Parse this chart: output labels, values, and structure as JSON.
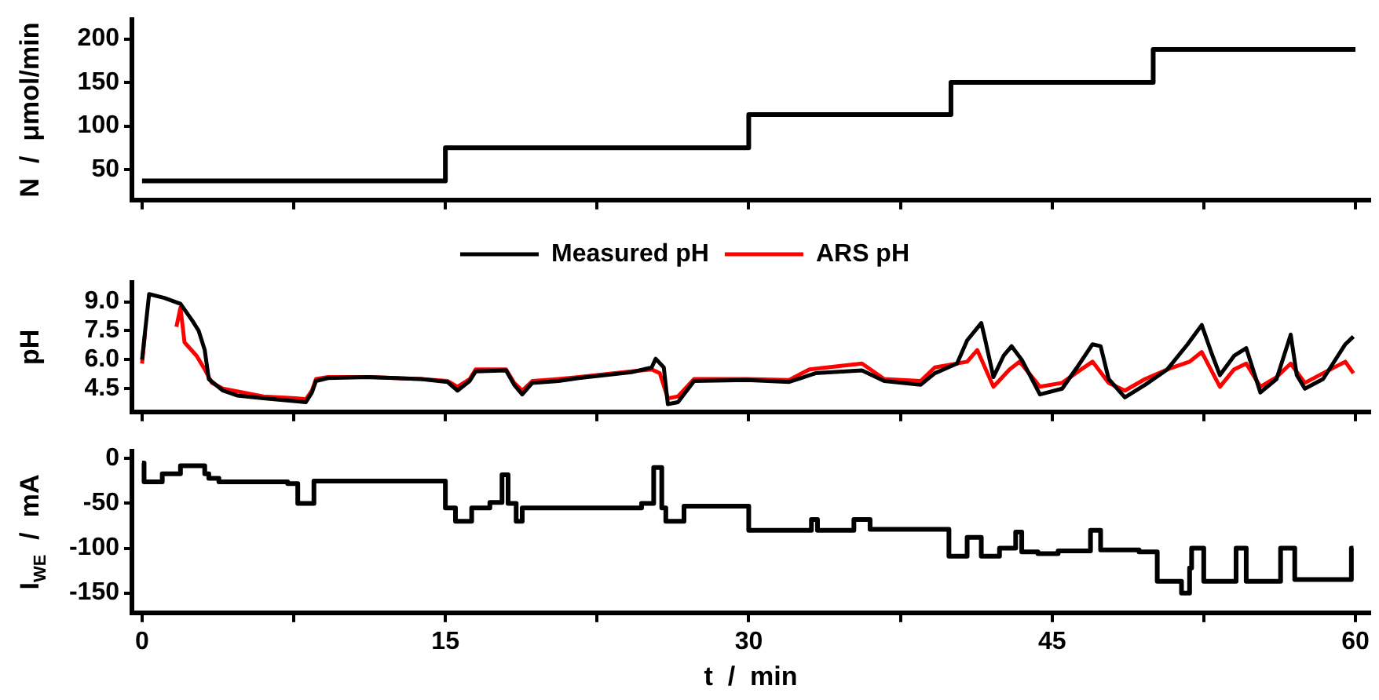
{
  "chart_data": [
    {
      "type": "step",
      "ylabel": "N  /  μmol/min",
      "x": [
        0,
        15,
        30,
        40,
        50,
        60
      ],
      "values": [
        37,
        75,
        113,
        150,
        188,
        188
      ],
      "color": "#000000",
      "xlim": [
        -0.5,
        60.7
      ],
      "xticks": [
        0,
        7.5,
        15,
        22.5,
        30,
        37.5,
        45,
        52.5,
        60
      ],
      "ylim": [
        15,
        222
      ],
      "yticks": [
        50,
        100,
        150,
        200
      ],
      "tick_labels": "y",
      "grid": false
    },
    {
      "type": "line",
      "ylabel": "pH",
      "legend": "top",
      "xlim": [
        -0.5,
        60.7
      ],
      "xticks": [
        0,
        7.5,
        15,
        22.5,
        30,
        37.5,
        45,
        52.5,
        60
      ],
      "ylim": [
        3.3,
        10
      ],
      "yticks": [
        {
          "value": 4.5,
          "label": "4.5"
        },
        {
          "value": 6,
          "label": "6.0"
        },
        {
          "value": 7.5,
          "label": "7.5"
        },
        {
          "value": 9,
          "label": "9.0"
        }
      ],
      "tick_labels": "y",
      "grid": false,
      "series": [
        {
          "name": "Measured pH",
          "color": "#000000",
          "x": [
            0,
            0.35,
            1.1,
            1.9,
            2.5,
            2.8,
            3.1,
            3.3,
            4.0,
            4.7,
            6.0,
            7.6,
            8.1,
            8.4,
            8.6,
            9.2,
            11.2,
            13.8,
            15.1,
            15.6,
            16.2,
            16.5,
            18.0,
            18.4,
            18.8,
            19.3,
            20.6,
            21.6,
            24.2,
            25.2,
            25.4,
            25.8,
            26.0,
            26.5,
            27.3,
            29.9,
            32.0,
            33.3,
            35.6,
            36.7,
            38.5,
            39.2,
            40.3,
            40.8,
            41.5,
            41.7,
            42.1,
            42.6,
            43.0,
            43.5,
            44.4,
            45.5,
            46.3,
            47.0,
            47.4,
            47.8,
            48.6,
            49.6,
            50.7,
            51.7,
            52.4,
            52.9,
            53.3,
            54.0,
            54.6,
            55.3,
            56.1,
            56.8,
            57.1,
            57.5,
            58.4,
            59.5,
            59.9
          ],
          "values": [
            6.0,
            9.4,
            9.2,
            8.9,
            8.0,
            7.5,
            6.5,
            5.0,
            4.4,
            4.15,
            4.0,
            3.85,
            3.8,
            4.3,
            4.9,
            5.05,
            5.1,
            5.0,
            4.85,
            4.4,
            4.9,
            5.4,
            5.45,
            4.7,
            4.2,
            4.8,
            4.9,
            5.05,
            5.35,
            5.6,
            6.05,
            5.6,
            3.7,
            3.8,
            4.9,
            4.95,
            4.85,
            5.3,
            5.45,
            4.9,
            4.7,
            5.3,
            5.8,
            7.0,
            7.9,
            7.0,
            5.1,
            6.2,
            6.7,
            6.0,
            4.2,
            4.5,
            5.7,
            6.8,
            6.7,
            5.0,
            4.05,
            4.7,
            5.5,
            6.8,
            7.8,
            6.3,
            5.2,
            6.2,
            6.6,
            4.3,
            5.0,
            7.3,
            5.2,
            4.5,
            5.0,
            6.8,
            7.2
          ]
        },
        {
          "name": "ARS pH",
          "color": "#ff0000",
          "x": [
            0,
            0.15,
            0.3,
            1.7,
            1.9,
            2.1,
            2.7,
            3.1,
            3.45,
            4.0,
            6.0,
            7.6,
            8.1,
            8.4,
            8.6,
            9.2,
            11.2,
            13.8,
            15.1,
            15.6,
            16.2,
            16.5,
            18.0,
            18.4,
            18.8,
            19.3,
            20.6,
            21.6,
            24.2,
            25.2,
            25.6,
            26.0,
            26.5,
            27.3,
            29.9,
            32.0,
            33.0,
            35.6,
            36.7,
            38.5,
            39.2,
            40.8,
            41.3,
            42.1,
            42.9,
            43.4,
            44.4,
            45.5,
            46.3,
            47.0,
            47.8,
            48.6,
            49.6,
            50.7,
            51.8,
            52.4,
            53.3,
            54.0,
            54.6,
            55.3,
            56.1,
            56.8,
            57.5,
            58.4,
            59.5,
            59.9
          ],
          "values": [
            5.8,
            7.4,
            null,
            7.7,
            8.7,
            6.9,
            6.2,
            5.5,
            4.8,
            4.5,
            4.1,
            4.0,
            3.95,
            4.4,
            5.0,
            5.1,
            5.1,
            5.0,
            4.9,
            4.6,
            5.0,
            5.5,
            5.5,
            4.8,
            4.4,
            4.9,
            5.0,
            5.1,
            5.4,
            5.5,
            5.3,
            4.0,
            4.1,
            5.0,
            5.0,
            4.95,
            5.5,
            5.8,
            5.0,
            4.9,
            5.6,
            5.9,
            6.5,
            4.6,
            5.5,
            5.9,
            4.6,
            4.8,
            5.4,
            5.9,
            4.8,
            4.4,
            5.0,
            5.5,
            5.9,
            6.4,
            4.6,
            5.5,
            5.8,
            4.6,
            5.1,
            5.8,
            4.8,
            5.3,
            5.9,
            5.3
          ]
        }
      ]
    },
    {
      "type": "step",
      "ylabel": "I$_{WE}$  /  mA",
      "xlabel": "t  /  min",
      "x": [
        0,
        0.1,
        1.0,
        1.9,
        3.1,
        3.3,
        3.8,
        7.2,
        7.7,
        8.5,
        15.0,
        15.5,
        16.3,
        17.2,
        17.8,
        18.1,
        18.5,
        18.8,
        24.7,
        25.3,
        25.7,
        25.9,
        26.8,
        30.0,
        33.1,
        33.4,
        35.2,
        36.0,
        39.9,
        40.8,
        41.5,
        42.4,
        43.2,
        43.5,
        44.3,
        45.3,
        46.9,
        47.4,
        49.3,
        50.2,
        51.4,
        51.8,
        51.9,
        52.5,
        54.1,
        54.6,
        56.3,
        57.0,
        59.8,
        59.9
      ],
      "values": [
        -5,
        -26,
        -17,
        -8,
        -17,
        -22,
        -26,
        -28,
        -50,
        -25,
        -55,
        -70,
        -55,
        -49,
        -18,
        -50,
        -70,
        -55,
        -50,
        -10,
        -55,
        -70,
        -53,
        -80,
        -68,
        -80,
        -68,
        -79,
        -109,
        -88,
        -109,
        -100,
        -82,
        -104,
        -106,
        -103,
        -80,
        -102,
        -104,
        -137,
        -150,
        -122,
        -100,
        -137,
        -100,
        -137,
        -100,
        -135,
        -100,
        -100
      ],
      "color": "#000000",
      "xlim": [
        -0.5,
        60.7
      ],
      "xticks": [
        0,
        {
          "value": 7.5,
          "label": null
        },
        15,
        {
          "value": 22.5,
          "label": null
        },
        30,
        {
          "value": 37.5,
          "label": null
        },
        45,
        {
          "value": 52.5,
          "label": null
        },
        60
      ],
      "ylim": [
        -172,
        8
      ],
      "yticks": [
        0,
        -50,
        -100,
        -150
      ],
      "grid": false
    }
  ]
}
